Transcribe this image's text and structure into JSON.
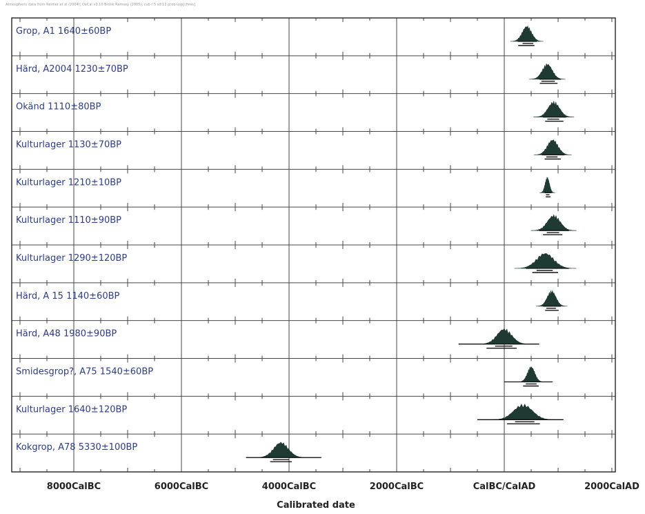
{
  "header_text": "Atmospheric data from Reimer et al (2004); OxCal v3.10 Bronk Ramsey (2005); cub r:5 sd:12 prob usp[chron]",
  "colors": {
    "frame": "#222222",
    "grid": "#444444",
    "label": "#2b3b8f",
    "distribution": "#1e3a32",
    "range_line": "#111111"
  },
  "chart_data": {
    "type": "calibration-plot",
    "xlabel": "Calibrated date",
    "x_domain": [
      -9000,
      2000
    ],
    "gridlines": [
      -8000,
      -6000,
      -4000,
      -2000,
      0
    ],
    "ticks": [
      {
        "value": -8000,
        "label": "8000CalBC"
      },
      {
        "value": -6000,
        "label": "6000CalBC"
      },
      {
        "value": -4000,
        "label": "4000CalBC"
      },
      {
        "value": -2000,
        "label": "2000CalBC"
      },
      {
        "value": 0,
        "label": "CalBC/CalAD"
      },
      {
        "value": 2000,
        "label": "2000CalAD"
      }
    ],
    "minor_tick_step": 500,
    "rows": [
      {
        "label": "Grop, A1  1640±60BP",
        "center": 420,
        "range": [
          250,
          600
        ],
        "r1": [
          340,
          540
        ],
        "r2": [
          260,
          560
        ],
        "sd": 70
      },
      {
        "label": "Härd, A2004  1230±70BP",
        "center": 800,
        "range": [
          650,
          1050
        ],
        "r1": [
          690,
          940
        ],
        "r2": [
          660,
          990
        ],
        "sd": 75
      },
      {
        "label": "Okänd  1110±80BP",
        "center": 920,
        "range": [
          720,
          1150
        ],
        "r1": [
          800,
          1020
        ],
        "r2": [
          760,
          1100
        ],
        "sd": 85
      },
      {
        "label": "Kulturlager  1130±70BP",
        "center": 900,
        "range": [
          700,
          1120
        ],
        "r1": [
          780,
          990
        ],
        "r2": [
          750,
          1050
        ],
        "sd": 80
      },
      {
        "label": "Kulturlager  1210±10BP",
        "center": 800,
        "range": [
          750,
          880
        ],
        "r1": [
          775,
          840
        ],
        "r2": [
          770,
          860
        ],
        "sd": 22
      },
      {
        "label": "Kulturlager  1110±90BP",
        "center": 920,
        "range": [
          650,
          1200
        ],
        "r1": [
          790,
          1020
        ],
        "r2": [
          720,
          1080
        ],
        "sd": 95
      },
      {
        "label": "Kulturlager  1290±120BP",
        "center": 760,
        "range": [
          400,
          1200
        ],
        "r1": [
          600,
          900
        ],
        "r2": [
          520,
          1000
        ],
        "sd": 130
      },
      {
        "label": "Härd, A 15  1140±60BP",
        "center": 880,
        "range": [
          720,
          1050
        ],
        "r1": [
          780,
          960
        ],
        "r2": [
          760,
          1010
        ],
        "sd": 65
      },
      {
        "label": "Härd, A48  1980±90BP",
        "center": 0,
        "range": [
          -850,
          650
        ],
        "r1": [
          -170,
          150
        ],
        "r2": [
          -330,
          230
        ],
        "sd": 110
      },
      {
        "label": "Smidesgrop?, A75  1540±60BP",
        "center": 500,
        "range": [
          0,
          900
        ],
        "r1": [
          400,
          600
        ],
        "r2": [
          350,
          640
        ],
        "sd": 55
      },
      {
        "label": "Kulturlager  1640±120BP",
        "center": 350,
        "range": [
          -500,
          1100
        ],
        "r1": [
          200,
          560
        ],
        "r2": [
          50,
          660
        ],
        "sd": 140
      },
      {
        "label": "Kokgrop, A78  5330±100BP",
        "center": -4150,
        "range": [
          -4800,
          -3400
        ],
        "r1": [
          -4300,
          -4000
        ],
        "r2": [
          -4350,
          -3950
        ],
        "sd": 110
      }
    ]
  }
}
